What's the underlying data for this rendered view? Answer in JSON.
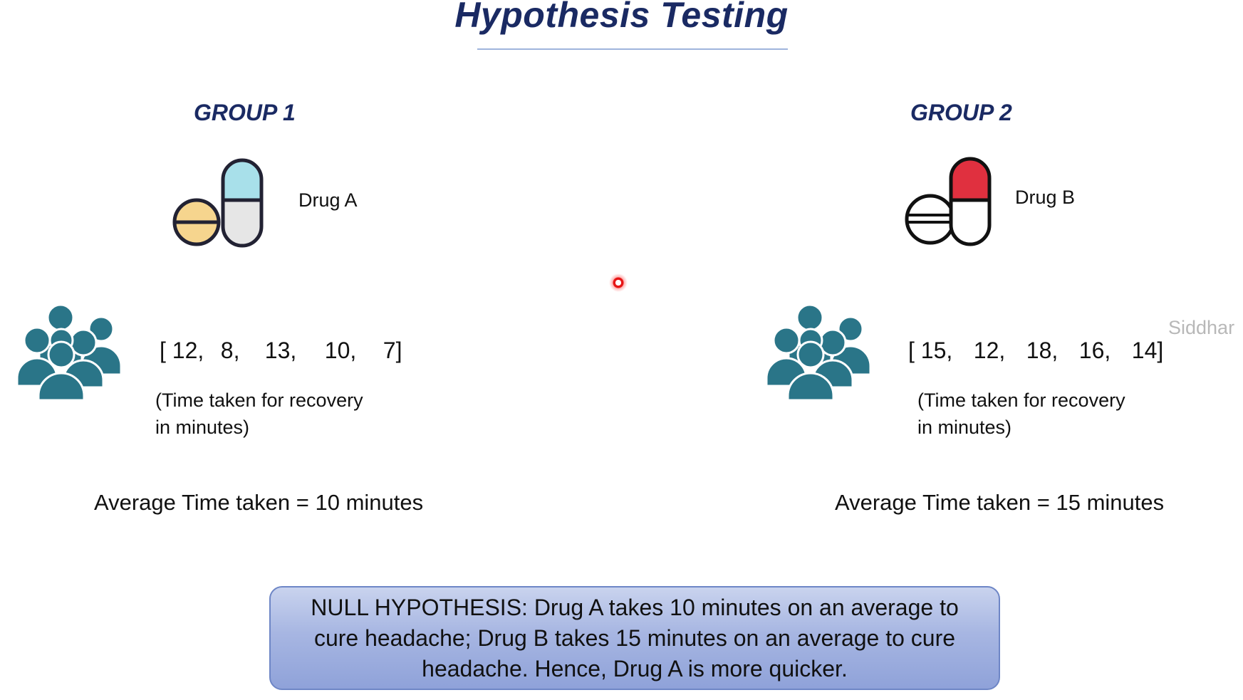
{
  "title": "Hypothesis Testing",
  "groups": [
    {
      "heading": "GROUP 1",
      "drug": "Drug A",
      "values": [
        "12,",
        "8,",
        "13,",
        "10,",
        "7"
      ],
      "caption_line1": "(Time taken for recovery",
      "caption_line2": "in minutes)",
      "average": "Average Time taken  =  10 minutes",
      "pill_top_color": "#a8e0ea",
      "tablet_color": "#f6d58e"
    },
    {
      "heading": "GROUP 2",
      "drug": "Drug B",
      "values": [
        "15,",
        "12,",
        "18,",
        "16,",
        "14"
      ],
      "caption_line1": "(Time taken for recovery",
      "caption_line2": "in minutes)",
      "average": "Average Time taken  =  15 minutes",
      "pill_top_color": "#e0303f",
      "tablet_color": "#ffffff"
    }
  ],
  "null_hypothesis": "NULL HYPOTHESIS:  Drug A takes 10 minutes on an average to cure headache; Drug B takes 15 minutes on an average to cure headache. Hence, Drug A is more quicker.",
  "watermark": "Siddhar",
  "colors": {
    "title": "#1a2a63",
    "people_icon": "#2a7588",
    "null_box": "#a7b6e2"
  }
}
